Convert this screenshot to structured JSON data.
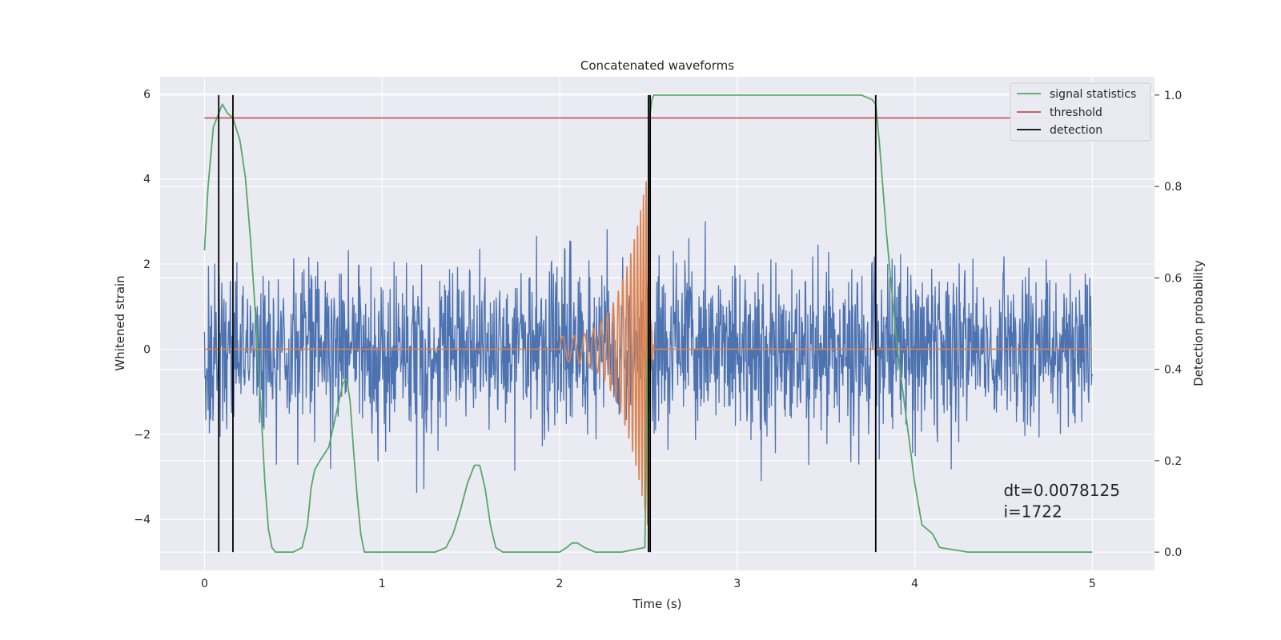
{
  "chart_data": {
    "type": "line",
    "title": "Concatenated waveforms",
    "xlabel": "Time (s)",
    "ylabel_left": "Whitened strain",
    "ylabel_right": "Detection probability",
    "xlim": [
      -0.25,
      5.35
    ],
    "ylim_left": [
      -5.2,
      6.4
    ],
    "ylim_right": [
      -0.04,
      1.04
    ],
    "x_ticks": [
      0,
      1,
      2,
      3,
      4,
      5
    ],
    "x_tick_labels": [
      "0",
      "1",
      "2",
      "3",
      "4",
      "5"
    ],
    "y_left_ticks": [
      -4,
      -2,
      0,
      2,
      4,
      6
    ],
    "y_left_tick_labels": [
      "−4",
      "−2",
      "0",
      "2",
      "4",
      "6"
    ],
    "y_right_ticks": [
      0.0,
      0.2,
      0.4,
      0.6,
      0.8,
      1.0
    ],
    "y_right_tick_labels": [
      "0.0",
      "0.2",
      "0.4",
      "0.6",
      "0.8",
      "1.0"
    ],
    "grid": true,
    "legend_position": "top-right",
    "colors": {
      "plot_background": "#eaeaf2",
      "grid": "#ffffff",
      "strain": "#4c72b0",
      "template": "#dd8452",
      "signal_statistics": "#55a868",
      "threshold": "#c44e52",
      "detection": "#000000"
    },
    "series": [
      {
        "name": "signal statistics",
        "axis": "right",
        "x": [
          0.0,
          0.02,
          0.05,
          0.08,
          0.1,
          0.13,
          0.16,
          0.2,
          0.23,
          0.26,
          0.29,
          0.32,
          0.34,
          0.36,
          0.38,
          0.4,
          0.45,
          0.5,
          0.55,
          0.58,
          0.6,
          0.62,
          0.65,
          0.7,
          0.74,
          0.78,
          0.8,
          0.82,
          0.84,
          0.86,
          0.88,
          0.9,
          0.93,
          0.96,
          1.0,
          1.1,
          1.2,
          1.3,
          1.36,
          1.4,
          1.44,
          1.48,
          1.52,
          1.55,
          1.58,
          1.61,
          1.64,
          1.68,
          1.8,
          2.0,
          2.04,
          2.07,
          2.1,
          2.14,
          2.2,
          2.35,
          2.48,
          2.5,
          2.51,
          2.52,
          2.53,
          2.56,
          3.0,
          3.5,
          3.7,
          3.76,
          3.78,
          3.8,
          3.84,
          3.9,
          3.95,
          4.0,
          4.04,
          4.07,
          4.1,
          4.14,
          4.3,
          4.6,
          5.0
        ],
        "values": [
          0.66,
          0.8,
          0.93,
          0.96,
          0.98,
          0.96,
          0.95,
          0.9,
          0.82,
          0.68,
          0.5,
          0.3,
          0.15,
          0.05,
          0.01,
          0.0,
          0.0,
          0.0,
          0.01,
          0.06,
          0.14,
          0.18,
          0.2,
          0.23,
          0.3,
          0.37,
          0.38,
          0.33,
          0.22,
          0.12,
          0.04,
          0.0,
          0.0,
          0.0,
          0.0,
          0.0,
          0.0,
          0.0,
          0.01,
          0.04,
          0.09,
          0.15,
          0.19,
          0.19,
          0.14,
          0.06,
          0.01,
          0.0,
          0.0,
          0.0,
          0.01,
          0.02,
          0.02,
          0.01,
          0.0,
          0.0,
          0.01,
          0.6,
          0.96,
          0.99,
          1.0,
          1.0,
          1.0,
          1.0,
          1.0,
          0.99,
          0.98,
          0.9,
          0.7,
          0.45,
          0.3,
          0.15,
          0.06,
          0.05,
          0.04,
          0.01,
          0.0,
          0.0,
          0.0
        ]
      },
      {
        "name": "threshold",
        "axis": "right",
        "x": [
          0.0,
          5.1
        ],
        "values": [
          0.95,
          0.95
        ]
      },
      {
        "name": "detection",
        "axis": "right",
        "type": "vlines",
        "x": [
          0.08,
          0.16,
          2.5,
          2.51,
          3.78
        ],
        "ymin": 0.0,
        "ymax": 1.0
      },
      {
        "axis": "left",
        "type": "noise",
        "x_range": [
          0.0,
          5.0
        ],
        "sample_interval": 0.0025,
        "sigma": 1.0,
        "visible_range": [
          -3.7,
          4.2
        ]
      },
      {
        "axis": "left",
        "type": "chirp",
        "x_range": [
          0.0,
          5.0
        ],
        "chirp_start": 2.0,
        "merger_time": 2.5,
        "amplitude_start": 0.3,
        "amplitude_peak": 4.3,
        "frequency_start": 15,
        "frequency_peak": 70
      }
    ],
    "annotations": [
      {
        "text": "dt=0.0078125",
        "x": 4.5,
        "y": -3.45
      },
      {
        "text": " i=1722",
        "x": 4.5,
        "y": -3.95
      }
    ]
  }
}
